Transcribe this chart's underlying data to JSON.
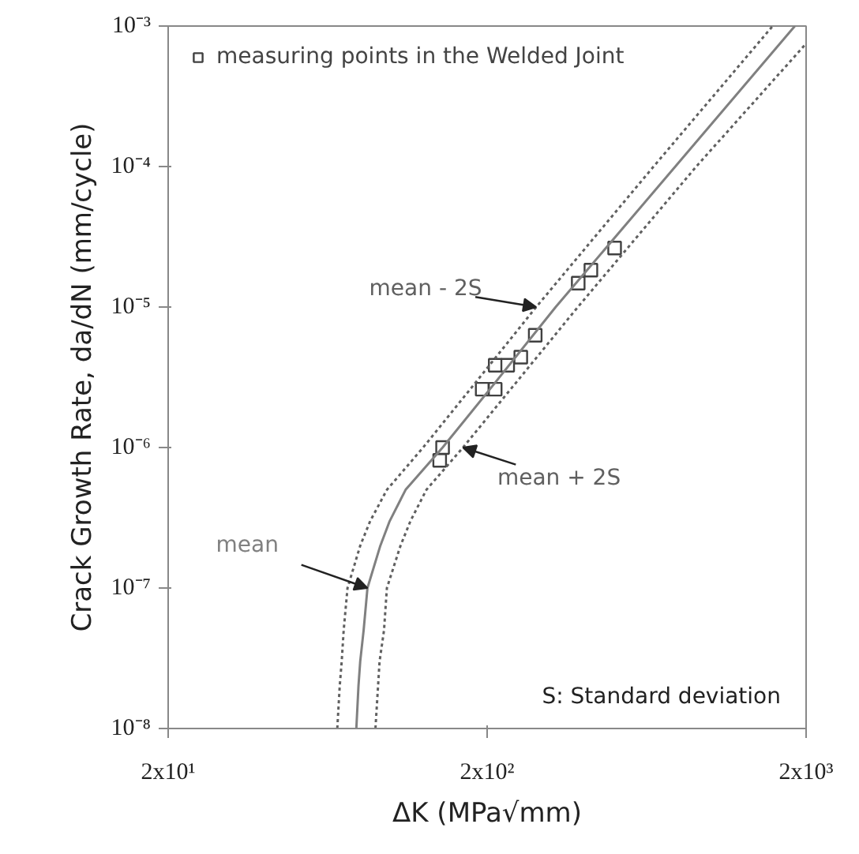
{
  "chart_data": {
    "type": "scatter",
    "xlabel": "ΔK (MPa√mm)",
    "ylabel": "Crack Growth Rate, da/dN (mm/cycle)",
    "log": "xy",
    "xlim": [
      20,
      2000
    ],
    "ylim": [
      1e-08,
      0.001
    ],
    "xticks": [
      {
        "value": 20,
        "label": "2x10¹"
      },
      {
        "value": 200,
        "label": "2x10²"
      },
      {
        "value": 2000,
        "label": "2x10³"
      }
    ],
    "yticks": [
      {
        "value": 1e-08,
        "label": "10⁻⁸"
      },
      {
        "value": 1e-07,
        "label": "10⁻⁷"
      },
      {
        "value": 1e-06,
        "label": "10⁻⁶"
      },
      {
        "value": 1e-05,
        "label": "10⁻⁵"
      },
      {
        "value": 0.0001,
        "label": "10⁻⁴"
      },
      {
        "value": 0.001,
        "label": "10⁻³"
      }
    ],
    "grid": false,
    "legend": "top left",
    "series": [
      {
        "name": "measuring points in the Welded Joint",
        "marker": "square",
        "color": "#404040",
        "x": [
          142,
          145,
          193,
          212,
          212,
          232,
          255,
          283,
          386,
          423,
          502
        ],
        "values": [
          8.1e-07,
          1e-06,
          2.6e-06,
          2.6e-06,
          3.85e-06,
          3.85e-06,
          4.4e-06,
          6.3e-06,
          1.48e-05,
          1.83e-05,
          2.63e-05
        ]
      },
      {
        "name": "mean",
        "type": "line",
        "marker": "none",
        "line_style": "solid",
        "color": "#808080",
        "x": [
          77.8,
          79,
          80,
          82,
          84.3,
          92.5,
          99,
          111,
          145,
          204,
          328,
          778,
          1844
        ],
        "values": [
          1e-08,
          2e-08,
          3e-08,
          5e-08,
          1e-07,
          2e-07,
          3e-07,
          5e-07,
          1e-06,
          2.6e-06,
          1e-05,
          0.0001,
          0.001
        ]
      },
      {
        "name": "mean - 2S",
        "type": "line",
        "marker": "none",
        "line_style": "dotted",
        "color": "#606060",
        "x": [
          67.8,
          69,
          70,
          71,
          73,
          80,
          86,
          97,
          126,
          177,
          285,
          665,
          1571
        ],
        "values": [
          1e-08,
          2e-08,
          3e-08,
          5e-08,
          1e-07,
          2e-07,
          3e-07,
          5e-07,
          1e-06,
          2.6e-06,
          1e-05,
          0.0001,
          0.001
        ]
      },
      {
        "name": "mean + 2S",
        "type": "line",
        "marker": "none",
        "line_style": "dotted",
        "color": "#606060",
        "x": [
          89.3,
          91,
          92,
          95,
          97,
          107,
          115,
          129,
          168,
          237,
          385,
          905,
          2000
        ],
        "values": [
          1e-08,
          2e-08,
          3e-08,
          5e-08,
          1e-07,
          2e-07,
          3e-07,
          5e-07,
          1e-06,
          2.6e-06,
          1e-05,
          0.0001,
          0.00075
        ]
      }
    ],
    "annotations": [
      "S: Standard deviation"
    ]
  }
}
